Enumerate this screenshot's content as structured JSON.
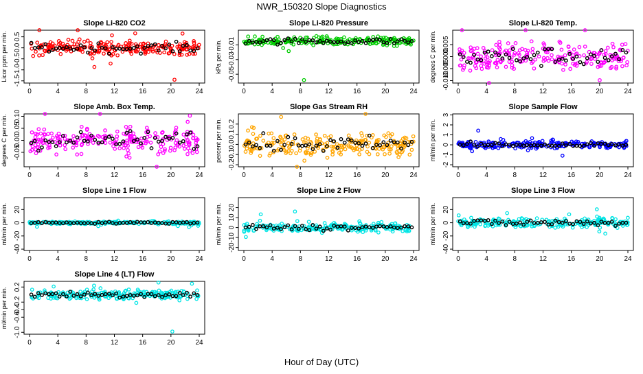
{
  "page_title": "NWR_150320  Slope Diagnostics",
  "x_axis_label": "Hour of Day (UTC)",
  "colors": {
    "red": "#ff0000",
    "green": "#00cc00",
    "magenta": "#ff00ff",
    "orange": "#ffa500",
    "blue": "#0000ff",
    "cyan": "#00e5e5",
    "black": "#000000"
  },
  "chart_data": [
    {
      "type": "scatter",
      "title": "Slope Li-820 CO2",
      "xlabel": "",
      "ylabel": "Licor ppm per min.",
      "xlim": [
        0,
        24
      ],
      "ylim": [
        -1.6,
        0.8
      ],
      "yticks": [
        0.5,
        0.0,
        -0.5,
        -1.0,
        -1.5
      ],
      "ytick_labels": [
        "0.5",
        "0.0",
        "-0.5",
        "-1.0",
        "-1.5"
      ],
      "xticks": [
        0,
        4,
        8,
        12,
        16,
        20,
        24
      ],
      "color": "red",
      "center": 0.0,
      "spread": 0.22,
      "outlier_low": -1.45,
      "outlier_x": 20.5
    },
    {
      "type": "scatter",
      "title": "Slope Li-820 Pressure",
      "xlabel": "",
      "ylabel": "kPa per min.",
      "xlim": [
        0,
        24
      ],
      "ylim": [
        -0.062,
        0.01
      ],
      "yticks": [
        -0.01,
        -0.03,
        -0.05
      ],
      "ytick_labels": [
        "-0.01",
        "-0.03",
        "-0.05"
      ],
      "xticks": [
        0,
        4,
        8,
        12,
        16,
        20,
        24
      ],
      "color": "green",
      "center": -0.005,
      "spread": 0.004,
      "outlier_low": -0.058,
      "outlier_x": 8.5
    },
    {
      "type": "scatter",
      "title": "Slope Li-820 Temp.",
      "xlabel": "",
      "ylabel": "degrees C per min.",
      "xlim": [
        0,
        24
      ],
      "ylim": [
        -0.011,
        0.011
      ],
      "yticks": [
        0.005,
        0.0,
        -0.005,
        -0.01
      ],
      "ytick_labels": [
        "0.005",
        "0.000",
        "-0.005",
        "-0.010"
      ],
      "xticks": [
        0,
        4,
        8,
        12,
        16,
        20,
        24
      ],
      "color": "magenta",
      "center": 0.0,
      "spread": 0.004
    },
    {
      "type": "scatter",
      "title": "Slope Amb. Box Temp.",
      "xlabel": "",
      "ylabel": "degrees C per min.",
      "xlim": [
        0,
        24
      ],
      "ylim": [
        -0.11,
        0.11
      ],
      "yticks": [
        0.1,
        0.05,
        0.0,
        -0.05
      ],
      "ytick_labels": [
        "0.10",
        "0.05",
        "0.00",
        "-0.05"
      ],
      "xticks": [
        0,
        4,
        8,
        12,
        16,
        20,
        24
      ],
      "color": "magenta",
      "center": 0.0,
      "spread": 0.04
    },
    {
      "type": "scatter",
      "title": "Slope Gas Stream RH",
      "xlabel": "",
      "ylabel": "percent per min.",
      "xlim": [
        0,
        24
      ],
      "ylim": [
        -0.22,
        0.3
      ],
      "yticks": [
        0.2,
        0.1,
        0.0,
        -0.1,
        -0.2
      ],
      "ytick_labels": [
        "0.2",
        "0.1",
        "0.0",
        "-0.1",
        "-0.2"
      ],
      "xticks": [
        0,
        4,
        8,
        12,
        16,
        20,
        24
      ],
      "color": "orange",
      "center": 0.0,
      "spread": 0.08
    },
    {
      "type": "scatter",
      "title": "Slope Sample Flow",
      "xlabel": "",
      "ylabel": "ml/min per min.",
      "xlim": [
        0,
        24
      ],
      "ylim": [
        -2.2,
        3.1
      ],
      "yticks": [
        3,
        2,
        1,
        0,
        -1,
        -2
      ],
      "ytick_labels": [
        "3",
        "2",
        "1",
        "0",
        "-1",
        "-2"
      ],
      "xticks": [
        0,
        4,
        8,
        12,
        16,
        20,
        24
      ],
      "color": "blue",
      "center": 0.0,
      "spread": 0.25
    },
    {
      "type": "scatter",
      "title": "Slope Line 1 Flow",
      "xlabel": "",
      "ylabel": "ml/min per min.",
      "xlim": [
        0,
        24
      ],
      "ylim": [
        -42,
        38
      ],
      "yticks": [
        20,
        0,
        -20,
        -40
      ],
      "ytick_labels": [
        "20",
        "0",
        "-20",
        "-40"
      ],
      "xticks": [
        0,
        4,
        8,
        12,
        16,
        20,
        24
      ],
      "color": "cyan",
      "center": 0.0,
      "spread": 1.5
    },
    {
      "type": "scatter",
      "title": "Slope Line 2 Flow",
      "xlabel": "",
      "ylabel": "ml/min per min.",
      "xlim": [
        0,
        24
      ],
      "ylim": [
        -23,
        30
      ],
      "yticks": [
        20,
        10,
        0,
        -10,
        -20
      ],
      "ytick_labels": [
        "20",
        "10",
        "0",
        "-10",
        "-20"
      ],
      "xticks": [
        0,
        4,
        8,
        12,
        16,
        20,
        24
      ],
      "color": "cyan",
      "center": 0.0,
      "spread": 3.0
    },
    {
      "type": "scatter",
      "title": "Slope Line 3 Flow",
      "xlabel": "",
      "ylabel": "ml/min per min.",
      "xlim": [
        0,
        24
      ],
      "ylim": [
        -42,
        38
      ],
      "yticks": [
        20,
        0,
        -20,
        -40
      ],
      "ytick_labels": [
        "20",
        "0",
        "-20",
        "-40"
      ],
      "xticks": [
        0,
        4,
        8,
        12,
        16,
        20,
        24
      ],
      "color": "cyan",
      "center": 0.0,
      "spread": 5.0
    },
    {
      "type": "scatter",
      "title": "Slope Line 4 (LT) Flow",
      "xlabel": "",
      "ylabel": "ml/min per min.",
      "xlim": [
        0,
        24
      ],
      "ylim": [
        -1.05,
        0.35
      ],
      "yticks": [
        0.2,
        -0.2,
        -0.4,
        -0.6,
        -1.0
      ],
      "ytick_labels": [
        "0.2",
        "-0.2",
        "-0.4",
        "-0.6",
        "-1.0"
      ],
      "xticks": [
        0,
        4,
        8,
        12,
        16,
        20,
        24
      ],
      "color": "cyan",
      "center": 0.0,
      "spread": 0.09,
      "outlier_low": -0.98,
      "outlier_x": 20.2
    }
  ]
}
